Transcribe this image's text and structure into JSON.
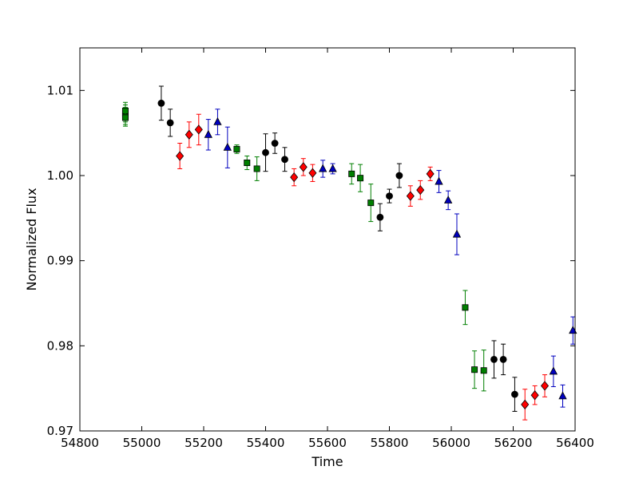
{
  "chart_data": {
    "type": "scatter",
    "xlabel": "Time",
    "ylabel": "Normalized Flux",
    "xlim": [
      54800,
      56400
    ],
    "ylim": [
      0.97,
      1.015
    ],
    "grid": false,
    "x_ticks": [
      {
        "value": 54800,
        "label": "54800"
      },
      {
        "value": 55000,
        "label": "55000"
      },
      {
        "value": 55200,
        "label": "55200"
      },
      {
        "value": 55400,
        "label": "55400"
      },
      {
        "value": 55600,
        "label": "55600"
      },
      {
        "value": 55800,
        "label": "55800"
      },
      {
        "value": 56000,
        "label": "56000"
      },
      {
        "value": 56200,
        "label": "56200"
      },
      {
        "value": 56400,
        "label": "56400"
      }
    ],
    "y_ticks": [
      {
        "value": 0.97,
        "label": "0.97"
      },
      {
        "value": 0.98,
        "label": "0.98"
      },
      {
        "value": 0.99,
        "label": "0.99"
      },
      {
        "value": 1.0,
        "label": "1.00"
      },
      {
        "value": 1.01,
        "label": "1.01"
      }
    ],
    "series": [
      {
        "marker": "square",
        "color": "#007f00",
        "points": [
          {
            "x": 54947,
            "y": 1.0073,
            "err": 0.001
          },
          {
            "x": 54947,
            "y": 1.007,
            "err": 0.001
          },
          {
            "x": 54947,
            "y": 1.0076,
            "err": 0.001
          },
          {
            "x": 54947,
            "y": 1.0068,
            "err": 0.001
          },
          {
            "x": 55307,
            "y": 1.0031,
            "err": 0.0005
          },
          {
            "x": 55340,
            "y": 1.0015,
            "err": 0.0008
          },
          {
            "x": 55372,
            "y": 1.0008,
            "err": 0.0014
          },
          {
            "x": 55678,
            "y": 1.0002,
            "err": 0.0012
          },
          {
            "x": 55706,
            "y": 0.9997,
            "err": 0.0016
          },
          {
            "x": 55740,
            "y": 0.9968,
            "err": 0.0022
          },
          {
            "x": 56045,
            "y": 0.9845,
            "err": 0.002
          },
          {
            "x": 56075,
            "y": 0.9772,
            "err": 0.0022
          },
          {
            "x": 56105,
            "y": 0.9771,
            "err": 0.0024
          }
        ]
      },
      {
        "marker": "circle",
        "color": "#000000",
        "points": [
          {
            "x": 55063,
            "y": 1.0085,
            "err": 0.002
          },
          {
            "x": 55092,
            "y": 1.0062,
            "err": 0.0016
          },
          {
            "x": 55400,
            "y": 1.0027,
            "err": 0.0022
          },
          {
            "x": 55430,
            "y": 1.0038,
            "err": 0.0012
          },
          {
            "x": 55462,
            "y": 1.0019,
            "err": 0.0014
          },
          {
            "x": 55770,
            "y": 0.9951,
            "err": 0.0016
          },
          {
            "x": 55800,
            "y": 0.9976,
            "err": 0.0008
          },
          {
            "x": 55832,
            "y": 1.0,
            "err": 0.0014
          },
          {
            "x": 56138,
            "y": 0.9784,
            "err": 0.0022
          },
          {
            "x": 56168,
            "y": 0.9784,
            "err": 0.0018
          },
          {
            "x": 56205,
            "y": 0.9743,
            "err": 0.002
          }
        ]
      },
      {
        "marker": "diamond",
        "color": "#ff0000",
        "points": [
          {
            "x": 55123,
            "y": 1.0023,
            "err": 0.0015
          },
          {
            "x": 55153,
            "y": 1.0048,
            "err": 0.0015
          },
          {
            "x": 55184,
            "y": 1.0054,
            "err": 0.0018
          },
          {
            "x": 55492,
            "y": 0.9998,
            "err": 0.001
          },
          {
            "x": 55522,
            "y": 1.001,
            "err": 0.001
          },
          {
            "x": 55552,
            "y": 1.0003,
            "err": 0.001
          },
          {
            "x": 55868,
            "y": 0.9976,
            "err": 0.0012
          },
          {
            "x": 55900,
            "y": 0.9983,
            "err": 0.0011
          },
          {
            "x": 55932,
            "y": 1.0002,
            "err": 0.0008
          },
          {
            "x": 56238,
            "y": 0.9731,
            "err": 0.0018
          },
          {
            "x": 56270,
            "y": 0.9742,
            "err": 0.0011
          },
          {
            "x": 56302,
            "y": 0.9753,
            "err": 0.0013
          }
        ]
      },
      {
        "marker": "triangle",
        "color": "#0000bf",
        "points": [
          {
            "x": 55215,
            "y": 1.0048,
            "err": 0.0018
          },
          {
            "x": 55245,
            "y": 1.0063,
            "err": 0.0015
          },
          {
            "x": 55277,
            "y": 1.0033,
            "err": 0.0024
          },
          {
            "x": 55585,
            "y": 1.0008,
            "err": 0.001
          },
          {
            "x": 55617,
            "y": 1.0008,
            "err": 0.0006
          },
          {
            "x": 55960,
            "y": 0.9993,
            "err": 0.0013
          },
          {
            "x": 55990,
            "y": 0.9971,
            "err": 0.0011
          },
          {
            "x": 56018,
            "y": 0.9931,
            "err": 0.0024
          },
          {
            "x": 56330,
            "y": 0.977,
            "err": 0.0018
          },
          {
            "x": 56360,
            "y": 0.9741,
            "err": 0.0013
          },
          {
            "x": 56393,
            "y": 0.9818,
            "err": 0.0016
          }
        ]
      }
    ]
  }
}
